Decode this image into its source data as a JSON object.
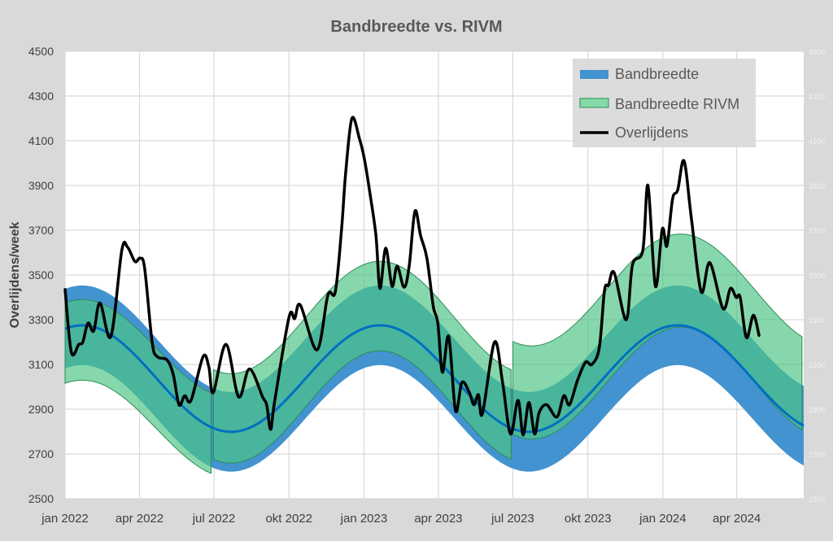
{
  "chart_data": {
    "type": "line",
    "title": "Bandbreedte vs. RIVM",
    "xlabel": "",
    "ylabel": "Overlijdens/week",
    "x_unit": "weeks since jan 2022",
    "xlim": [
      0,
      129
    ],
    "ylim": [
      2500,
      4500
    ],
    "yticks": [
      2500,
      2700,
      2900,
      3100,
      3300,
      3500,
      3700,
      3900,
      4100,
      4300,
      4500
    ],
    "xticks": [
      {
        "week": 0,
        "label": "jan 2022"
      },
      {
        "week": 13,
        "label": "apr 2022"
      },
      {
        "week": 26,
        "label": "jul 2022"
      },
      {
        "week": 39.1,
        "label": "okt 2022"
      },
      {
        "week": 52.2,
        "label": "jan 2023"
      },
      {
        "week": 65.2,
        "label": "apr 2023"
      },
      {
        "week": 78.2,
        "label": "jul 2023"
      },
      {
        "week": 91.3,
        "label": "okt 2023"
      },
      {
        "week": 104.4,
        "label": "jan 2024"
      },
      {
        "week": 117.3,
        "label": "apr 2024"
      }
    ],
    "grid": true,
    "legend_position": "top-right",
    "legend": [
      "Bandbreedte",
      "Bandbreedte RIVM",
      "Overlijdens"
    ],
    "colors": {
      "band": "#2f86c8",
      "band_line": "#0070c0",
      "rivm": "#4cc585",
      "rivm_edge": "#2e8b57",
      "deaths": "#000000"
    },
    "bandbreedte": {
      "period_weeks": 52,
      "peak_week": 3,
      "mean": 3037,
      "amplitude": 238,
      "halfwidth": 178,
      "range": [
        0,
        129
      ]
    },
    "bandbreedte_rivm": [
      {
        "range": [
          0,
          25.6
        ],
        "period_weeks": 52,
        "peak_week": 3,
        "mean": 2992,
        "amplitude": 218,
        "halfwidth": 180
      },
      {
        "range": [
          25.9,
          78.0
        ],
        "period_weeks": 52,
        "peak_week": 3,
        "mean": 3110,
        "amplitude": 251,
        "halfwidth": 200
      },
      {
        "range": [
          78.2,
          129
        ],
        "period_weeks": 52,
        "peak_week": 3.5,
        "mean": 3225,
        "amplitude": 250,
        "halfwidth": 208
      }
    ],
    "overlijdens": {
      "x": [
        0,
        1.1,
        2.4,
        3.1,
        4.0,
        5.0,
        6.1,
        8.0,
        9.9,
        10.9,
        12.2,
        13.1,
        13.9,
        15.2,
        16.1,
        17.8,
        18.9,
        19.9,
        20.9,
        22.0,
        24.1,
        25.1,
        25.9,
        28.1,
        30.3,
        32.2,
        34.5,
        35.2,
        35.9,
        36.6,
        39.1,
        40.1,
        41.1,
        44.0,
        45.9,
        47.2,
        48.3,
        49.0,
        50.1,
        51.4,
        52.3,
        53.3,
        54.3,
        55.0,
        56.0,
        57.1,
        58.0,
        59.2,
        60.1,
        61.1,
        62.1,
        63.2,
        64.3,
        65.1,
        65.9,
        67.0,
        68.2,
        69.3,
        70.6,
        71.4,
        72.2,
        72.9,
        75.0,
        76.4,
        77.8,
        79.1,
        80.0,
        81.0,
        82.0,
        82.8,
        84.1,
        85.9,
        87.1,
        88.1,
        89.5,
        90.9,
        92.0,
        93.3,
        94.2,
        94.9,
        95.9,
        98.0,
        99.1,
        100.9,
        101.8,
        103.1,
        104.3,
        105.1,
        106.1,
        107.0,
        108.1,
        109.4,
        111.1,
        112.6,
        114.9,
        116.2,
        117.2,
        117.9,
        119.0,
        120.2,
        121.2
      ],
      "y": [
        3435,
        3155,
        3190,
        3200,
        3285,
        3250,
        3375,
        3225,
        3610,
        3625,
        3560,
        3575,
        3530,
        3200,
        3135,
        3120,
        3055,
        2920,
        2960,
        2940,
        3135,
        3090,
        2975,
        3190,
        2955,
        3080,
        2955,
        2920,
        2810,
        2935,
        3310,
        3305,
        3365,
        3165,
        3410,
        3425,
        3710,
        3955,
        4200,
        4110,
        4015,
        3855,
        3675,
        3440,
        3620,
        3450,
        3540,
        3445,
        3540,
        3785,
        3675,
        3575,
        3360,
        3285,
        3065,
        3225,
        2893,
        3020,
        2975,
        2920,
        2965,
        2880,
        3200,
        3020,
        2790,
        2940,
        2785,
        2930,
        2790,
        2885,
        2920,
        2865,
        2960,
        2920,
        3030,
        3110,
        3100,
        3175,
        3430,
        3455,
        3510,
        3300,
        3545,
        3610,
        3900,
        3450,
        3705,
        3630,
        3840,
        3880,
        4010,
        3750,
        3425,
        3555,
        3350,
        3440,
        3400,
        3400,
        3220,
        3320,
        3230
      ]
    }
  }
}
